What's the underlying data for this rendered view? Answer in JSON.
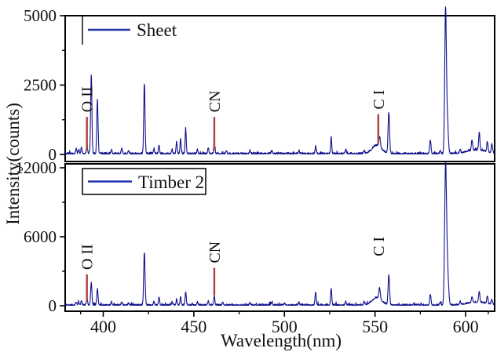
{
  "figure": {
    "background": "#ffffff",
    "frame_color": "#000000"
  },
  "chart_data": {
    "type": "line",
    "title": "",
    "xlabel": "Wavelength(nm)",
    "ylabel": "Intensity(counts)",
    "x_range": [
      379,
      616
    ],
    "x_major_ticks": [
      400,
      450,
      500,
      550,
      600
    ],
    "x_minor_ticks": [
      387.5,
      425,
      475,
      525,
      575,
      612.5
    ],
    "line_color": "#10108e",
    "legend_line_color": "#2433ae",
    "annotation_color": "#b0413a",
    "panels": [
      {
        "name": "Sheet",
        "legend": {
          "label": "Sheet",
          "style": "open"
        },
        "y_range": [
          0,
          5000
        ],
        "y_major_ticks": [
          0,
          2500,
          5000
        ],
        "y_minor_ticks": [
          1250,
          3750
        ],
        "noise_amplitude": 130,
        "annotations": [
          {
            "label": "O II",
            "x": 391.0,
            "line": [
              150,
              1350
            ]
          },
          {
            "label": "CN",
            "x": 461.3,
            "line": [
              150,
              1350
            ]
          },
          {
            "label": "C I",
            "x": 551.8,
            "line": [
              380,
              1450
            ]
          }
        ],
        "peaks": [
          [
            385,
            180,
            0.3
          ],
          [
            386.5,
            150,
            0.3
          ],
          [
            388,
            230,
            0.3
          ],
          [
            391,
            380,
            0.3
          ],
          [
            393.4,
            2850,
            0.35
          ],
          [
            396.8,
            1900,
            0.35
          ],
          [
            404.6,
            160,
            0.3
          ],
          [
            410.2,
            180,
            0.3
          ],
          [
            414,
            120,
            0.3
          ],
          [
            422.7,
            2520,
            0.35
          ],
          [
            428,
            180,
            0.3
          ],
          [
            430.8,
            300,
            0.3
          ],
          [
            438,
            160,
            0.3
          ],
          [
            440.5,
            420,
            0.3
          ],
          [
            442.7,
            520,
            0.3
          ],
          [
            445.5,
            920,
            0.3
          ],
          [
            452,
            150,
            0.3
          ],
          [
            458,
            220,
            0.3
          ],
          [
            461.3,
            420,
            0.3
          ],
          [
            468,
            110,
            0.3
          ],
          [
            481,
            120,
            0.3
          ],
          [
            493,
            110,
            0.3
          ],
          [
            508,
            110,
            0.3
          ],
          [
            517.2,
            260,
            0.3
          ],
          [
            525.8,
            580,
            0.3
          ],
          [
            533.8,
            150,
            0.3
          ],
          [
            544,
            130,
            0.3
          ],
          [
            551,
            300,
            2.6
          ],
          [
            552.5,
            380,
            0.4
          ],
          [
            557.6,
            1480,
            0.4
          ],
          [
            580.5,
            500,
            0.35
          ],
          [
            586,
            130,
            0.3
          ],
          [
            588.9,
            5120,
            0.45
          ],
          [
            589.9,
            1200,
            0.5
          ],
          [
            597,
            120,
            0.3
          ],
          [
            603.5,
            380,
            0.35
          ],
          [
            606,
            130,
            5
          ],
          [
            607.5,
            620,
            0.35
          ],
          [
            612,
            360,
            0.35
          ],
          [
            614.5,
            300,
            0.35
          ]
        ]
      },
      {
        "name": "Timber 2",
        "legend": {
          "label": "Timber 2",
          "style": "boxed"
        },
        "y_range": [
          0,
          12000
        ],
        "y_major_ticks": [
          0,
          6000,
          12000
        ],
        "y_minor_ticks": [
          3000,
          9000
        ],
        "noise_amplitude": 280,
        "annotations": [
          {
            "label": "O II",
            "x": 391.0,
            "line": [
              420,
              2720
            ]
          },
          {
            "label": "CN",
            "x": 461.3,
            "line": [
              920,
              3300
            ]
          },
          {
            "label": "C I",
            "x": 551.8,
            "line": null,
            "label_y": 4300
          }
        ],
        "peaks": [
          [
            385,
            280,
            0.3
          ],
          [
            386.5,
            250,
            0.3
          ],
          [
            388,
            340,
            0.3
          ],
          [
            391,
            600,
            0.3
          ],
          [
            393.4,
            2000,
            0.35
          ],
          [
            396.8,
            1400,
            0.35
          ],
          [
            404.6,
            260,
            0.3
          ],
          [
            410.2,
            230,
            0.3
          ],
          [
            414,
            180,
            0.3
          ],
          [
            422.7,
            4550,
            0.38
          ],
          [
            428,
            300,
            0.3
          ],
          [
            430.8,
            700,
            0.3
          ],
          [
            438,
            250,
            0.3
          ],
          [
            440.5,
            520,
            0.3
          ],
          [
            442.7,
            720,
            0.3
          ],
          [
            445.5,
            1150,
            0.32
          ],
          [
            452,
            250,
            0.3
          ],
          [
            458,
            320,
            0.3
          ],
          [
            461.3,
            820,
            0.3
          ],
          [
            466,
            250,
            0.3
          ],
          [
            481,
            200,
            0.3
          ],
          [
            493,
            260,
            0.3
          ],
          [
            500,
            160,
            0.3
          ],
          [
            508,
            220,
            0.3
          ],
          [
            517.2,
            1120,
            0.32
          ],
          [
            525.8,
            1420,
            0.32
          ],
          [
            533.8,
            320,
            0.3
          ],
          [
            544,
            260,
            0.3
          ],
          [
            551,
            650,
            2.6
          ],
          [
            552.5,
            900,
            0.4
          ],
          [
            557.6,
            2550,
            0.4
          ],
          [
            580.5,
            920,
            0.35
          ],
          [
            586,
            300,
            0.3
          ],
          [
            588.9,
            11600,
            0.5
          ],
          [
            589.9,
            3300,
            0.6
          ],
          [
            597,
            250,
            0.3
          ],
          [
            603.5,
            520,
            0.35
          ],
          [
            606,
            250,
            5
          ],
          [
            607.5,
            960,
            0.35
          ],
          [
            612,
            680,
            0.35
          ],
          [
            614.5,
            430,
            0.35
          ]
        ]
      }
    ]
  }
}
